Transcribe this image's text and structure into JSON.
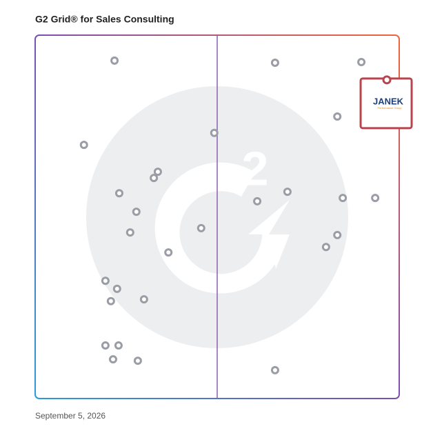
{
  "chart_data": {
    "type": "scatter",
    "title": "G2 Grid® for Sales Consulting",
    "date": "September 5, 2026",
    "xlim": [
      0,
      100
    ],
    "ylim": [
      0,
      100
    ],
    "color": "#9a9ca6",
    "x": [
      21.8,
      65.9,
      89.6,
      83.0,
      13.4,
      49.2,
      33.7,
      32.6,
      23.1,
      69.3,
      61.0,
      84.5,
      93.4,
      27.8,
      45.6,
      26.1,
      83.0,
      79.9,
      36.6,
      19.3,
      22.5,
      20.8,
      29.9,
      19.3,
      22.9,
      21.4,
      28.2,
      65.9
    ],
    "values": [
      93.0,
      92.4,
      92.6,
      77.6,
      69.8,
      73.1,
      62.4,
      60.7,
      56.5,
      56.9,
      54.3,
      55.2,
      55.2,
      51.4,
      46.9,
      45.7,
      45.0,
      41.7,
      40.2,
      32.4,
      30.2,
      26.8,
      27.3,
      14.6,
      14.6,
      10.8,
      10.4,
      7.8
    ],
    "highlight": {
      "x": 96.6,
      "y": 87.7,
      "color": "#b5464d",
      "label": "JANEK",
      "sublabel": "Performance Group"
    }
  }
}
